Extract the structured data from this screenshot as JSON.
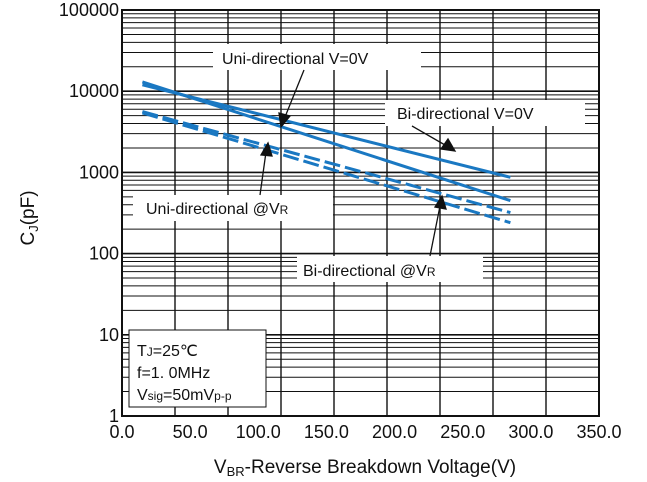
{
  "chart_data": {
    "type": "line",
    "title": "",
    "xlabel": {
      "main": "V",
      "sub": "BR",
      "rest": "-Reverse Breakdown Voltage(V)"
    },
    "ylabel": {
      "main": "C",
      "sub": "J",
      "rest": "(pF)"
    },
    "x_ticks": [
      "0.0",
      "50.0",
      "100.0",
      "150.0",
      "200.0",
      "250.0",
      "300.0",
      "350.0"
    ],
    "y_ticks": [
      "1",
      "10",
      "100",
      "1000",
      "10000",
      "100000"
    ],
    "xlim": [
      0,
      350
    ],
    "ylim": [
      1,
      100000
    ],
    "y_scale": "log",
    "grid": true,
    "line_color": "#1a78c2",
    "series": [
      {
        "name": "Uni-directional V=0V",
        "style": "solid",
        "x": [
          15,
          285
        ],
        "y": [
          13000,
          450
        ]
      },
      {
        "name": "Bi-directional V=0V",
        "style": "solid",
        "x": [
          15,
          285
        ],
        "y": [
          12000,
          870
        ]
      },
      {
        "name": "Uni-directional @VR",
        "style": "dashed",
        "x": [
          15,
          285
        ],
        "y": [
          5600,
          320
        ]
      },
      {
        "name": "Bi-directional @VR",
        "style": "dashed",
        "x": [
          15,
          285
        ],
        "y": [
          5400,
          240
        ]
      }
    ],
    "annotations": {
      "uni_v0": "Uni-directional V=0V",
      "bi_v0": "Bi-directional V=0V",
      "uni_vr": {
        "main": "Uni-directional @V",
        "sub": "R"
      },
      "bi_vr": {
        "main": "Bi-directional @V",
        "sub": "R"
      }
    },
    "conditions": {
      "tj": {
        "main": "T",
        "sub": "J",
        "rest": "=25℃"
      },
      "freq": "f=1. 0MHz",
      "vsig": {
        "main": "V",
        "sub": "sig",
        "mid": "=50mV",
        "sub2": "p-p"
      }
    }
  }
}
